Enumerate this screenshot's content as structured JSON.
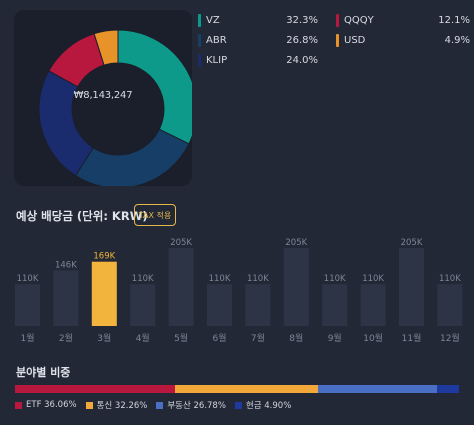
{
  "portfolio": {
    "total": "₩8,143,247",
    "holdings": [
      {
        "name": "VZ",
        "percent_label": "32.3%",
        "value": 32.3,
        "color": "#0e9a8a"
      },
      {
        "name": "ABR",
        "percent_label": "26.8%",
        "value": 26.8,
        "color": "#173e66"
      },
      {
        "name": "KLIP",
        "percent_label": "24.0%",
        "value": 24.0,
        "color": "#1a2b6e"
      },
      {
        "name": "QQQY",
        "percent_label": "12.1%",
        "value": 12.1,
        "color": "#b8173e"
      },
      {
        "name": "USD",
        "percent_label": "4.9%",
        "value": 4.9,
        "color": "#e8922a"
      }
    ]
  },
  "dividends": {
    "title": "예상 배당금 (단위: KRW)",
    "tax_button": "TAX 적용",
    "highlight_color": "#f2b43c",
    "bar_color": "#2c3445"
  },
  "chart_data": {
    "type": "bar",
    "categories": [
      "1월",
      "2월",
      "3월",
      "4월",
      "5월",
      "6월",
      "7월",
      "8월",
      "9월",
      "10월",
      "11월",
      "12월"
    ],
    "values": [
      110,
      146,
      169,
      110,
      205,
      110,
      110,
      205,
      110,
      110,
      205,
      110
    ],
    "value_labels": [
      "110K",
      "146K",
      "169K",
      "110K",
      "205K",
      "110K",
      "110K",
      "205K",
      "110K",
      "110K",
      "205K",
      "110K"
    ],
    "highlighted_index": 2,
    "unit": "K KRW",
    "ylim": [
      0,
      205
    ]
  },
  "sectors": {
    "title": "분야별 비중",
    "items": [
      {
        "label": "ETF 36.06%",
        "value": 36.06,
        "color": "#b8173e"
      },
      {
        "label": "통신 32.26%",
        "value": 32.26,
        "color": "#f2a93a"
      },
      {
        "label": "부동산 26.78%",
        "value": 26.78,
        "color": "#4a6fc4"
      },
      {
        "label": "현금 4.90%",
        "value": 4.9,
        "color": "#1f3a9e"
      }
    ]
  }
}
